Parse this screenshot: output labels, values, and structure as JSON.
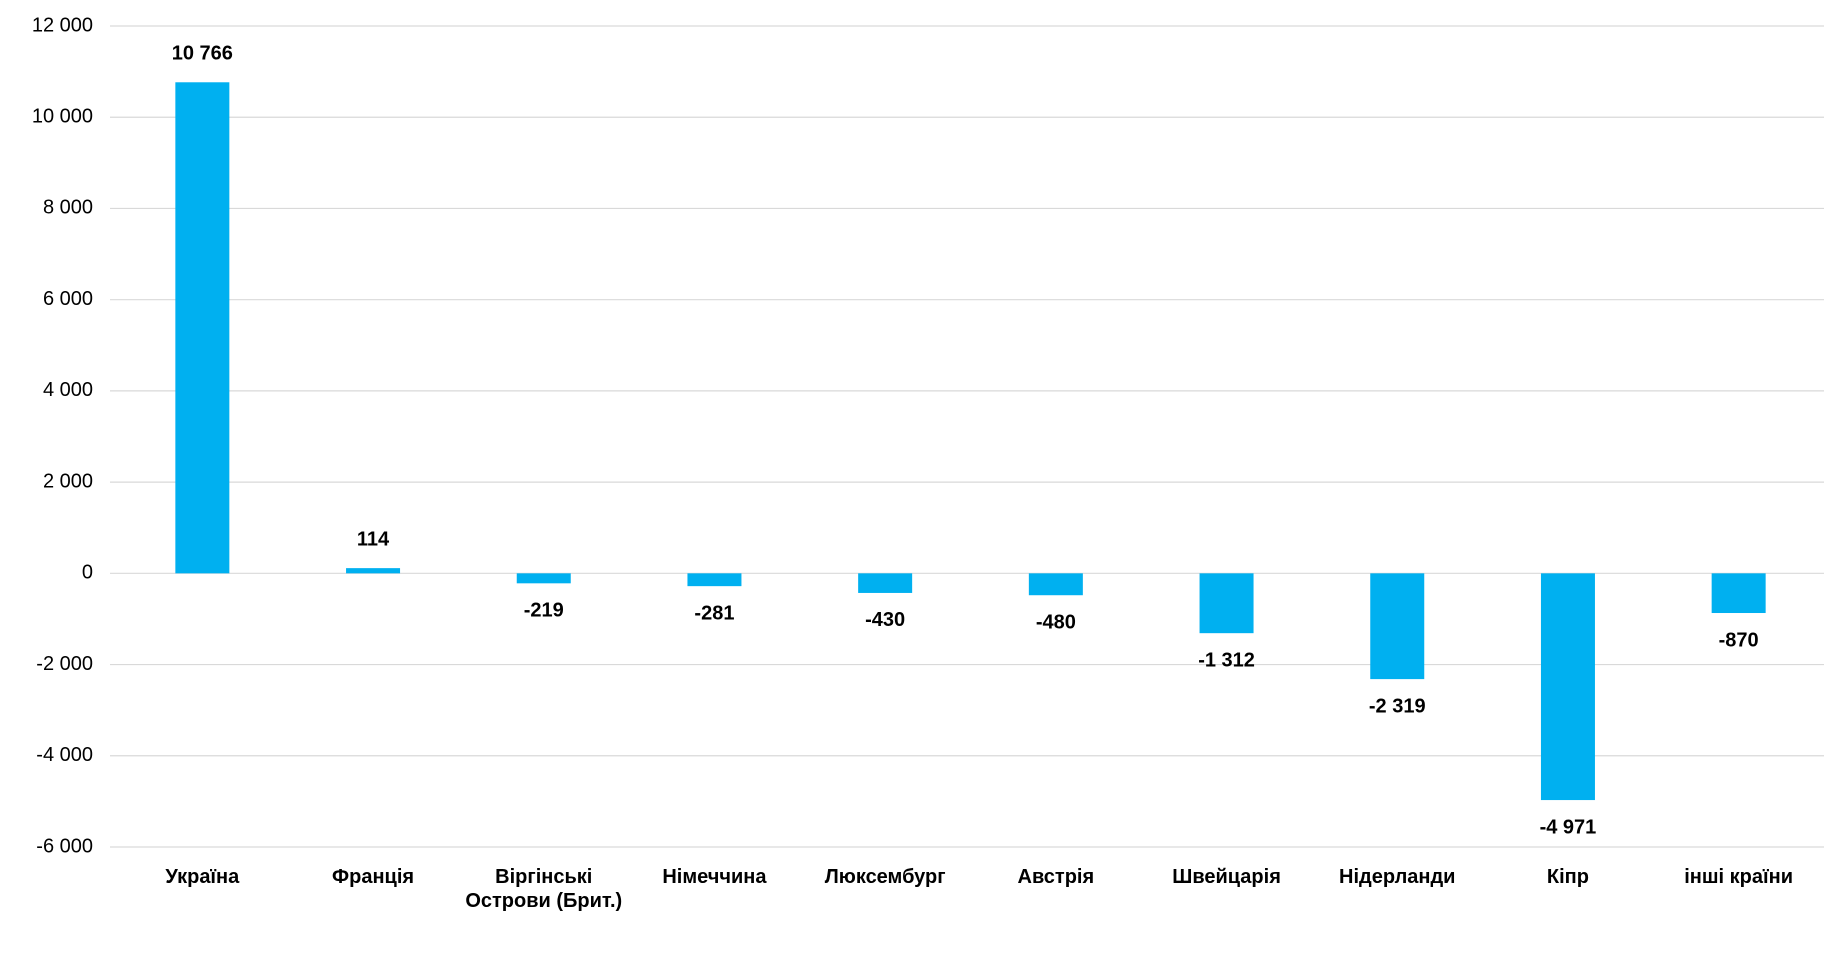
{
  "chart_data": {
    "type": "bar",
    "categories": [
      "Україна",
      "Франція",
      "Віргінські Острови (Брит.)",
      "Німеччина",
      "Люксембург",
      "Австрія",
      "Швейцарія",
      "Нідерланди",
      "Кіпр",
      "інші країни"
    ],
    "values": [
      10766,
      114,
      -219,
      -281,
      -430,
      -480,
      -1312,
      -2319,
      -4971,
      -870
    ],
    "value_labels": [
      "10 766",
      "114",
      "-219",
      "-281",
      "-430",
      "-480",
      "-1 312",
      "-2 319",
      "-4 971",
      "-870"
    ],
    "color": "#00b0f0",
    "ylim": [
      -6000,
      12000
    ],
    "yticks": [
      {
        "value": -6000,
        "label": "-6 000"
      },
      {
        "value": -4000,
        "label": "-4 000"
      },
      {
        "value": -2000,
        "label": "-2 000"
      },
      0,
      {
        "value": 2000,
        "label": "2 000"
      },
      {
        "value": 4000,
        "label": "4 000"
      },
      {
        "value": 6000,
        "label": "6 000"
      },
      {
        "value": 8000,
        "label": "8 000"
      },
      {
        "value": 10000,
        "label": "10 000"
      },
      {
        "value": 12000,
        "label": "12 000"
      }
    ],
    "grid": true
  }
}
